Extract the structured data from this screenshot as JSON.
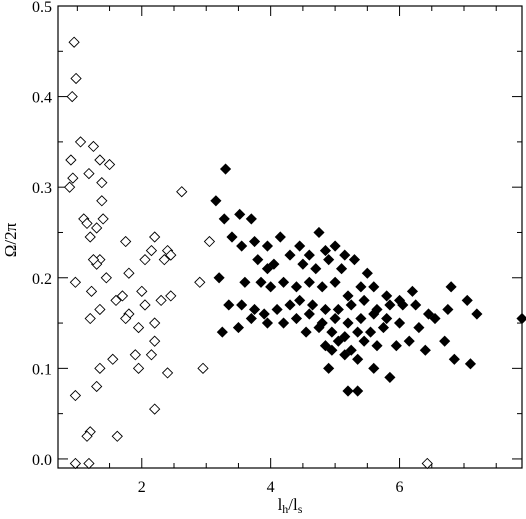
{
  "chart_data": {
    "type": "scatter",
    "title": "",
    "xlabel": "l_h/l_s",
    "ylabel": "Ω/2π",
    "xlim": [
      0.7,
      7.9
    ],
    "ylim": [
      -0.01,
      0.5
    ],
    "x_ticks": [
      2,
      4,
      6
    ],
    "y_ticks": [
      0.0,
      0.1,
      0.2,
      0.3,
      0.4,
      0.5
    ],
    "x_tick_labels": [
      "2",
      "4",
      "6"
    ],
    "y_tick_labels": [
      "0.0",
      "0.1",
      "0.2",
      "0.3",
      "0.4",
      "0.5"
    ],
    "grid": false,
    "legend": "none",
    "series": [
      {
        "marker": "open-diamond",
        "color": "#000000",
        "points": [
          [
            0.95,
            0.46
          ],
          [
            0.98,
            0.42
          ],
          [
            0.92,
            0.4
          ],
          [
            0.9,
            0.33
          ],
          [
            0.88,
            0.3
          ],
          [
            0.93,
            0.31
          ],
          [
            1.25,
            0.345
          ],
          [
            1.18,
            0.315
          ],
          [
            1.35,
            0.33
          ],
          [
            1.5,
            0.325
          ],
          [
            1.05,
            0.35
          ],
          [
            1.38,
            0.305
          ],
          [
            1.38,
            0.285
          ],
          [
            1.1,
            0.265
          ],
          [
            1.15,
            0.26
          ],
          [
            1.3,
            0.255
          ],
          [
            1.4,
            0.265
          ],
          [
            1.2,
            0.245
          ],
          [
            1.75,
            0.24
          ],
          [
            2.2,
            0.245
          ],
          [
            2.15,
            0.23
          ],
          [
            2.4,
            0.23
          ],
          [
            2.45,
            0.225
          ],
          [
            2.62,
            0.295
          ],
          [
            2.35,
            0.22
          ],
          [
            2.05,
            0.22
          ],
          [
            1.35,
            0.22
          ],
          [
            1.3,
            0.215
          ],
          [
            1.25,
            0.22
          ],
          [
            1.45,
            0.2
          ],
          [
            1.8,
            0.205
          ],
          [
            0.97,
            0.195
          ],
          [
            2.0,
            0.185
          ],
          [
            2.45,
            0.18
          ],
          [
            2.9,
            0.195
          ],
          [
            2.3,
            0.175
          ],
          [
            1.22,
            0.185
          ],
          [
            1.7,
            0.18
          ],
          [
            1.6,
            0.175
          ],
          [
            1.35,
            0.165
          ],
          [
            2.05,
            0.17
          ],
          [
            1.8,
            0.16
          ],
          [
            1.75,
            0.155
          ],
          [
            1.2,
            0.155
          ],
          [
            1.95,
            0.145
          ],
          [
            2.2,
            0.13
          ],
          [
            2.2,
            0.15
          ],
          [
            1.55,
            0.11
          ],
          [
            1.9,
            0.115
          ],
          [
            2.15,
            0.115
          ],
          [
            1.35,
            0.1
          ],
          [
            1.95,
            0.1
          ],
          [
            2.4,
            0.095
          ],
          [
            2.95,
            0.1
          ],
          [
            1.3,
            0.08
          ],
          [
            0.97,
            0.07
          ],
          [
            2.2,
            0.055
          ],
          [
            1.2,
            0.03
          ],
          [
            1.15,
            0.025
          ],
          [
            1.62,
            0.025
          ],
          [
            3.05,
            0.24
          ],
          [
            0.97,
            -0.005
          ],
          [
            1.18,
            -0.005
          ],
          [
            6.43,
            -0.005
          ]
        ]
      },
      {
        "marker": "filled-diamond",
        "color": "#000000",
        "points": [
          [
            3.3,
            0.32
          ],
          [
            3.15,
            0.285
          ],
          [
            3.28,
            0.265
          ],
          [
            3.52,
            0.27
          ],
          [
            3.7,
            0.265
          ],
          [
            3.4,
            0.245
          ],
          [
            3.55,
            0.235
          ],
          [
            3.75,
            0.24
          ],
          [
            3.95,
            0.235
          ],
          [
            4.15,
            0.245
          ],
          [
            4.45,
            0.235
          ],
          [
            4.6,
            0.225
          ],
          [
            4.75,
            0.25
          ],
          [
            4.85,
            0.23
          ],
          [
            5.0,
            0.235
          ],
          [
            5.15,
            0.225
          ],
          [
            5.3,
            0.22
          ],
          [
            5.5,
            0.205
          ],
          [
            3.8,
            0.22
          ],
          [
            3.95,
            0.21
          ],
          [
            4.05,
            0.215
          ],
          [
            4.3,
            0.225
          ],
          [
            4.5,
            0.215
          ],
          [
            4.7,
            0.21
          ],
          [
            4.9,
            0.22
          ],
          [
            5.1,
            0.21
          ],
          [
            3.2,
            0.2
          ],
          [
            3.6,
            0.195
          ],
          [
            3.85,
            0.195
          ],
          [
            4.0,
            0.19
          ],
          [
            4.2,
            0.195
          ],
          [
            4.4,
            0.19
          ],
          [
            4.6,
            0.195
          ],
          [
            4.8,
            0.19
          ],
          [
            5.0,
            0.195
          ],
          [
            5.2,
            0.18
          ],
          [
            5.4,
            0.19
          ],
          [
            5.6,
            0.19
          ],
          [
            5.8,
            0.18
          ],
          [
            6.0,
            0.175
          ],
          [
            6.2,
            0.185
          ],
          [
            6.8,
            0.19
          ],
          [
            3.35,
            0.17
          ],
          [
            3.55,
            0.17
          ],
          [
            3.75,
            0.165
          ],
          [
            3.9,
            0.16
          ],
          [
            4.1,
            0.165
          ],
          [
            4.3,
            0.17
          ],
          [
            4.45,
            0.175
          ],
          [
            4.65,
            0.17
          ],
          [
            4.85,
            0.165
          ],
          [
            5.05,
            0.165
          ],
          [
            5.25,
            0.17
          ],
          [
            5.45,
            0.175
          ],
          [
            5.65,
            0.165
          ],
          [
            5.85,
            0.17
          ],
          [
            6.05,
            0.17
          ],
          [
            6.25,
            0.17
          ],
          [
            6.45,
            0.16
          ],
          [
            6.75,
            0.165
          ],
          [
            7.05,
            0.175
          ],
          [
            7.2,
            0.16
          ],
          [
            3.7,
            0.155
          ],
          [
            3.95,
            0.15
          ],
          [
            4.2,
            0.15
          ],
          [
            4.4,
            0.155
          ],
          [
            4.6,
            0.16
          ],
          [
            4.8,
            0.15
          ],
          [
            5.0,
            0.155
          ],
          [
            5.2,
            0.15
          ],
          [
            5.4,
            0.155
          ],
          [
            5.6,
            0.16
          ],
          [
            5.8,
            0.155
          ],
          [
            6.0,
            0.15
          ],
          [
            6.3,
            0.145
          ],
          [
            6.55,
            0.155
          ],
          [
            7.9,
            0.155
          ],
          [
            3.25,
            0.14
          ],
          [
            3.5,
            0.145
          ],
          [
            4.55,
            0.14
          ],
          [
            4.75,
            0.145
          ],
          [
            4.95,
            0.14
          ],
          [
            5.15,
            0.135
          ],
          [
            5.35,
            0.14
          ],
          [
            5.55,
            0.14
          ],
          [
            5.75,
            0.145
          ],
          [
            6.15,
            0.13
          ],
          [
            6.4,
            0.12
          ],
          [
            6.7,
            0.13
          ],
          [
            4.85,
            0.125
          ],
          [
            5.05,
            0.13
          ],
          [
            5.25,
            0.12
          ],
          [
            5.45,
            0.13
          ],
          [
            5.65,
            0.125
          ],
          [
            5.95,
            0.125
          ],
          [
            6.85,
            0.11
          ],
          [
            7.1,
            0.105
          ],
          [
            4.95,
            0.12
          ],
          [
            5.15,
            0.115
          ],
          [
            5.35,
            0.11
          ],
          [
            5.6,
            0.1
          ],
          [
            4.9,
            0.1
          ],
          [
            5.85,
            0.09
          ],
          [
            5.2,
            0.075
          ],
          [
            5.35,
            0.075
          ]
        ]
      }
    ]
  }
}
